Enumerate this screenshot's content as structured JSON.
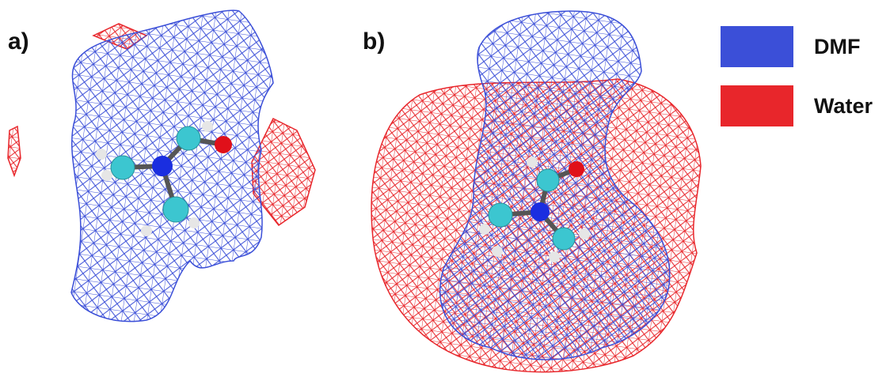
{
  "panels": [
    {
      "label": "a)"
    },
    {
      "label": "b)"
    }
  ],
  "legend": [
    {
      "name": "DMF",
      "color": "#3b4fd8"
    },
    {
      "name": "Water",
      "color": "#e8262b"
    }
  ]
}
